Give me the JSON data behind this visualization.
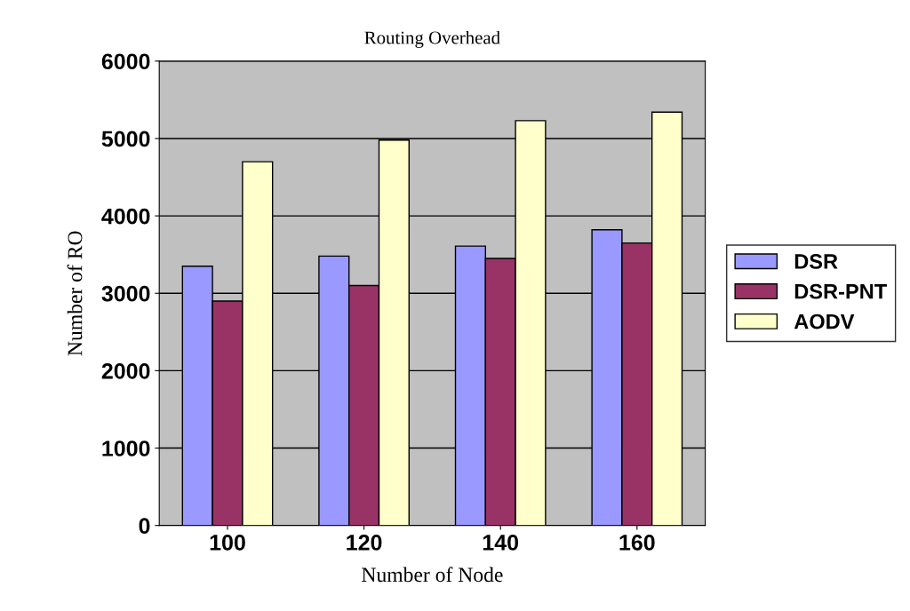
{
  "chart_data": {
    "type": "bar",
    "title": "Routing Overhead",
    "xlabel": "Number of Node",
    "ylabel": "Number of RO",
    "categories": [
      "100",
      "120",
      "140",
      "160"
    ],
    "series": [
      {
        "name": "DSR",
        "color": "#9999ff",
        "values": [
          3350,
          3480,
          3610,
          3820
        ]
      },
      {
        "name": "DSR-PNT",
        "color": "#993366",
        "values": [
          2900,
          3100,
          3450,
          3650
        ]
      },
      {
        "name": "AODV",
        "color": "#ffffcc",
        "values": [
          4700,
          4980,
          5230,
          5340
        ]
      }
    ],
    "ylim": [
      0,
      6000
    ],
    "yticks": [
      0,
      1000,
      2000,
      3000,
      4000,
      5000,
      6000
    ],
    "grid": "y",
    "legend": "right"
  }
}
